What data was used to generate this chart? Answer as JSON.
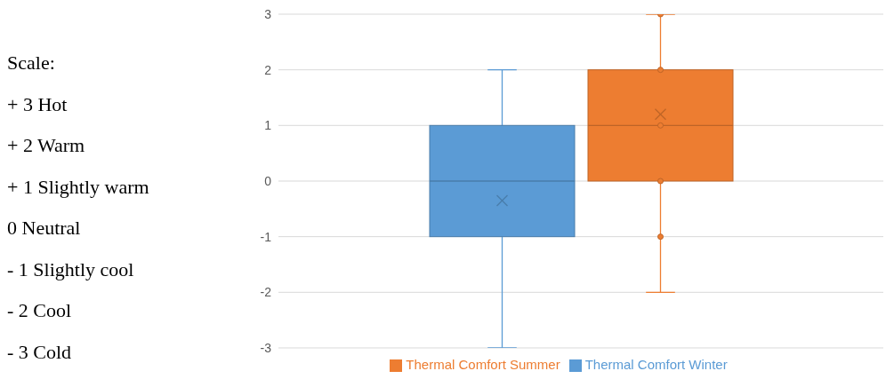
{
  "chart_data": {
    "type": "box",
    "categories": [
      null
    ],
    "series": [
      {
        "name": "Thermal Comfort Winter",
        "color": "#5b9bd5",
        "boxes": [
          {
            "low": -3,
            "q1": -1,
            "median": 0,
            "q3": 1,
            "high": 2,
            "mean": -0.35
          }
        ]
      },
      {
        "name": "Thermal Comfort Summer",
        "color": "#ed7d31",
        "boxes": [
          {
            "low": -2,
            "q1": 0,
            "median": 1,
            "q3": 2,
            "high": 3,
            "mean": 1.2,
            "outliers": [
              3,
              2,
              1,
              0,
              -1
            ]
          }
        ]
      }
    ],
    "ylim": [
      -3,
      3
    ],
    "yticks": [
      -3,
      -2,
      -1,
      0,
      1,
      2,
      3
    ],
    "grid": "y",
    "legend": "bottom",
    "annotations": [
      "Scale:",
      "+ 3 Hot",
      "+ 2 Warm",
      "+ 1 Slightly warm",
      "0 Neutral",
      "- 1 Slightly cool",
      "- 2 Cool",
      "- 3 Cold"
    ]
  }
}
